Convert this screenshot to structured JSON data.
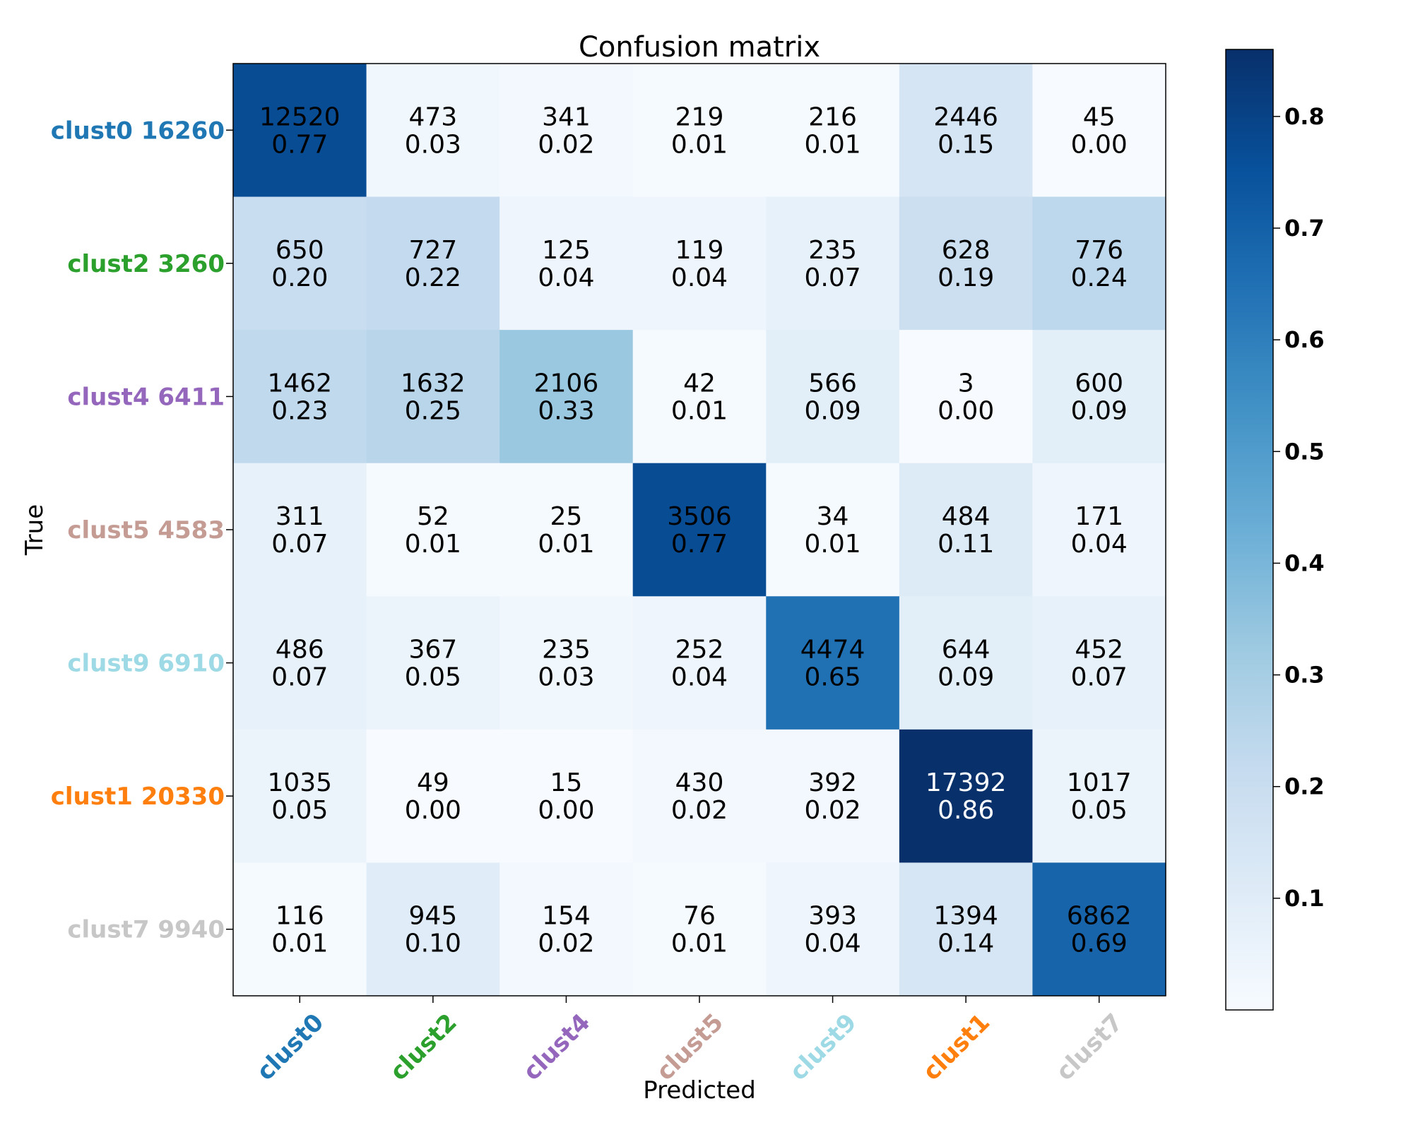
{
  "chart_data": {
    "type": "heatmap",
    "title": "Confusion matrix",
    "xlabel": "Predicted",
    "ylabel": "True",
    "x_categories": [
      "clust0",
      "clust2",
      "clust4",
      "clust5",
      "clust9",
      "clust1",
      "clust7"
    ],
    "y_categories": [
      "clust0 16260",
      "clust2 3260",
      "clust4 6411",
      "clust5 4583",
      "clust9 6910",
      "clust1 20330",
      "clust7 9940"
    ],
    "category_colors": [
      "#1f77b4",
      "#2ca02c",
      "#9467bd",
      "#c49c94",
      "#9edae5",
      "#ff7f0e",
      "#c7c7c7"
    ],
    "counts": [
      [
        12520,
        473,
        341,
        219,
        216,
        2446,
        45
      ],
      [
        650,
        727,
        125,
        119,
        235,
        628,
        776
      ],
      [
        1462,
        1632,
        2106,
        42,
        566,
        3,
        600
      ],
      [
        311,
        52,
        25,
        3506,
        34,
        484,
        171
      ],
      [
        486,
        367,
        235,
        252,
        4474,
        644,
        452
      ],
      [
        1035,
        49,
        15,
        430,
        392,
        17392,
        1017
      ],
      [
        116,
        945,
        154,
        76,
        393,
        1394,
        6862
      ]
    ],
    "normalized": [
      [
        "0.77",
        "0.03",
        "0.02",
        "0.01",
        "0.01",
        "0.15",
        "0.00"
      ],
      [
        "0.20",
        "0.22",
        "0.04",
        "0.04",
        "0.07",
        "0.19",
        "0.24"
      ],
      [
        "0.23",
        "0.25",
        "0.33",
        "0.01",
        "0.09",
        "0.00",
        "0.09"
      ],
      [
        "0.07",
        "0.01",
        "0.01",
        "0.77",
        "0.01",
        "0.11",
        "0.04"
      ],
      [
        "0.07",
        "0.05",
        "0.03",
        "0.04",
        "0.65",
        "0.09",
        "0.07"
      ],
      [
        "0.05",
        "0.00",
        "0.00",
        "0.02",
        "0.02",
        "0.86",
        "0.05"
      ],
      [
        "0.01",
        "0.10",
        "0.02",
        "0.01",
        "0.04",
        "0.14",
        "0.69"
      ]
    ],
    "colorbar": {
      "cmap": "Blues",
      "vmin": 0.0,
      "vmax": 0.86,
      "ticks": [
        "0.1",
        "0.2",
        "0.3",
        "0.4",
        "0.5",
        "0.6",
        "0.7",
        "0.8"
      ]
    }
  }
}
